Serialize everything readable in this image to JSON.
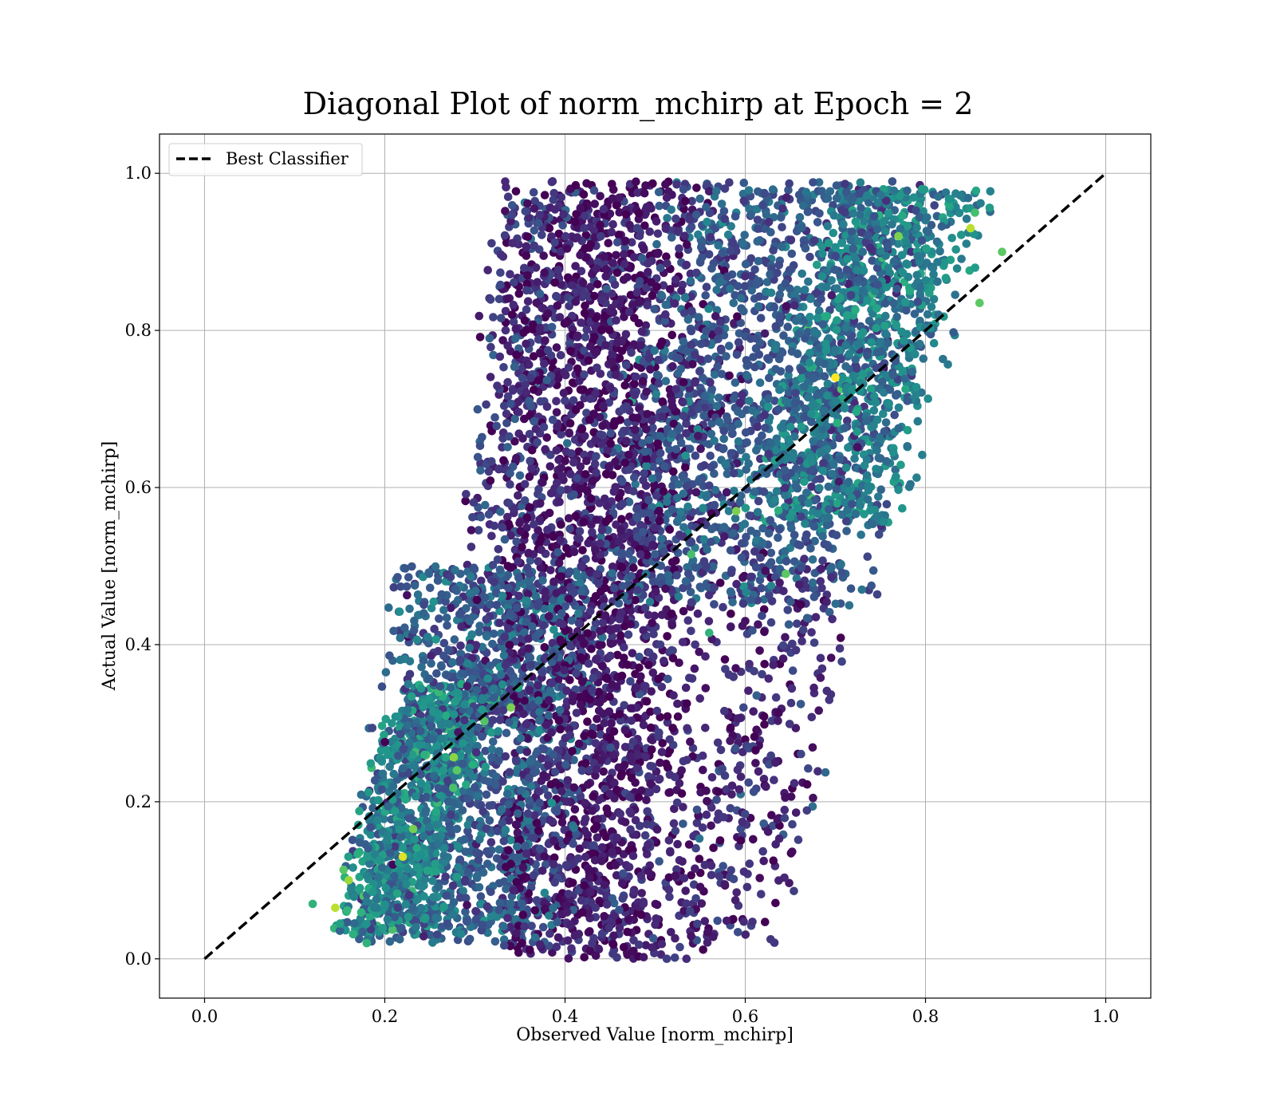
{
  "chart_data": {
    "type": "scatter",
    "title": "Diagonal Plot of norm_mchirp at Epoch = 2",
    "xlabel": "Observed Value [norm_mchirp]",
    "ylabel": "Actual Value [norm_mchirp]",
    "xlim": [
      -0.05,
      1.05
    ],
    "ylim": [
      -0.05,
      1.05
    ],
    "x_ticks": [
      "0.0",
      "0.2",
      "0.4",
      "0.6",
      "0.8",
      "1.0"
    ],
    "y_ticks": [
      "0.0",
      "0.2",
      "0.4",
      "0.6",
      "0.8",
      "1.0"
    ],
    "grid": true,
    "colormap": "viridis",
    "legend": {
      "placement": "upper-left",
      "entries": [
        {
          "label": "Best Classifier",
          "style": "dashed",
          "color": "#000000"
        }
      ]
    },
    "reference_line": {
      "name": "Best Classifier",
      "x": [
        0.0,
        1.0
      ],
      "y": [
        0.0,
        1.0
      ]
    },
    "point_clusters": [
      {
        "x_mean": 0.44,
        "x_sd": 0.06,
        "x_min": 0.33,
        "x_max": 0.6,
        "y_min": 0.0,
        "y_max": 0.99,
        "count": 2600,
        "color_level": 0.08
      },
      {
        "y_min": 0.45,
        "y_max": 0.99,
        "x_center_at_ymin": 0.58,
        "x_center_at_ymax": 0.66,
        "x_halfwidth": 0.17,
        "count": 1600,
        "color_level": 0.28
      },
      {
        "y_min": 0.55,
        "y_max": 0.98,
        "x_center_at_ymin": 0.68,
        "x_center_at_ymax": 0.78,
        "x_halfwidth": 0.1,
        "count": 900,
        "color_level": 0.45
      },
      {
        "y_min": 0.02,
        "y_max": 0.5,
        "x_center_at_ymin": 0.27,
        "x_center_at_ymax": 0.33,
        "x_halfwidth": 0.13,
        "count": 1400,
        "color_level": 0.3
      },
      {
        "y_min": 0.03,
        "y_max": 0.35,
        "x_center_at_ymin": 0.2,
        "x_center_at_ymax": 0.27,
        "x_halfwidth": 0.07,
        "count": 700,
        "color_level": 0.5
      },
      {
        "y_min": 0.3,
        "y_max": 0.98,
        "x_center_at_ymin": 0.3,
        "x_center_at_ymax": 0.37,
        "x_halfwidth": 0.05,
        "count": 350,
        "color_level": 0.18
      },
      {
        "y_min": 0.02,
        "y_max": 0.5,
        "x_center_at_ymin": 0.58,
        "x_center_at_ymax": 0.66,
        "x_halfwidth": 0.08,
        "count": 300,
        "color_level": 0.12
      }
    ],
    "highlight_points": [
      {
        "x": 0.7,
        "y": 0.74,
        "color_level": 1.0
      },
      {
        "x": 0.145,
        "y": 0.065,
        "color_level": 0.9
      },
      {
        "x": 0.16,
        "y": 0.1,
        "color_level": 0.85
      },
      {
        "x": 0.22,
        "y": 0.13,
        "color_level": 0.95
      },
      {
        "x": 0.85,
        "y": 0.93,
        "color_level": 0.9
      },
      {
        "x": 0.885,
        "y": 0.9,
        "color_level": 0.75
      },
      {
        "x": 0.59,
        "y": 0.57,
        "color_level": 0.8
      },
      {
        "x": 0.34,
        "y": 0.32,
        "color_level": 0.8
      },
      {
        "x": 0.54,
        "y": 0.515,
        "color_level": 0.7
      },
      {
        "x": 0.645,
        "y": 0.49,
        "color_level": 0.75
      },
      {
        "x": 0.28,
        "y": 0.24,
        "color_level": 0.75
      },
      {
        "x": 0.18,
        "y": 0.02,
        "color_level": 0.65
      },
      {
        "x": 0.12,
        "y": 0.07,
        "color_level": 0.65
      },
      {
        "x": 0.77,
        "y": 0.92,
        "color_level": 0.8
      },
      {
        "x": 0.86,
        "y": 0.835,
        "color_level": 0.75
      },
      {
        "x": 0.56,
        "y": 0.415,
        "color_level": 0.65
      },
      {
        "x": 0.855,
        "y": 0.95,
        "color_level": 0.7
      }
    ]
  }
}
